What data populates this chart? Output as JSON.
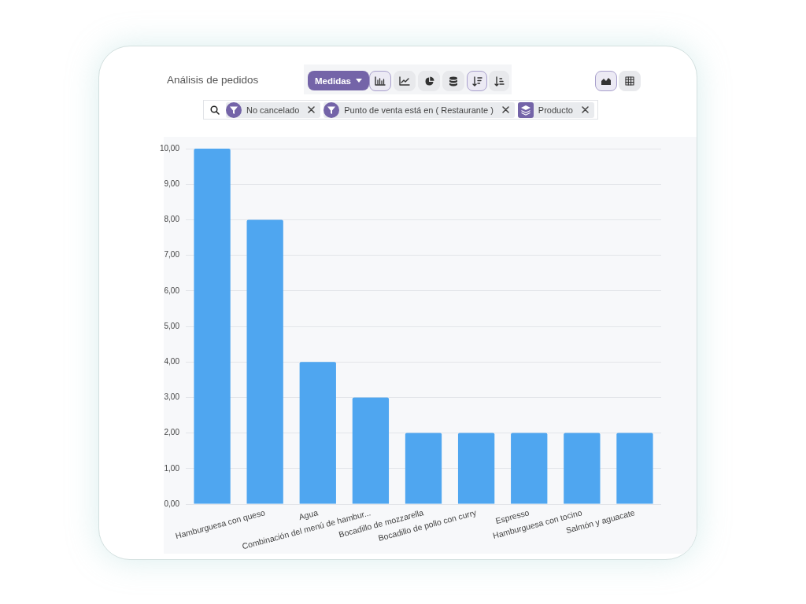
{
  "chart_data": {
    "type": "bar",
    "title": "Análisis de pedidos",
    "categories": [
      null,
      "Hamburguesa con queso",
      "Agua",
      "Combinación del menú de hambur...",
      "Bocadillo de mozzarella",
      "Bocadillo de pollo con curry",
      "Espresso",
      "Hamburguesa con tocino",
      "Salmón y aguacate"
    ],
    "values": [
      10,
      8,
      4,
      3,
      2,
      2,
      2,
      2,
      2
    ],
    "color": "#4fa6f0",
    "ylim": [
      0,
      10
    ],
    "yticks": [
      {
        "value": 0,
        "label": "0,00"
      },
      {
        "value": 1,
        "label": "1,00"
      },
      {
        "value": 2,
        "label": "2,00"
      },
      {
        "value": 3,
        "label": "3,00"
      },
      {
        "value": 4,
        "label": "4,00"
      },
      {
        "value": 5,
        "label": "5,00"
      },
      {
        "value": 6,
        "label": "6,00"
      },
      {
        "value": 7,
        "label": "7,00"
      },
      {
        "value": 8,
        "label": "8,00"
      },
      {
        "value": 9,
        "label": "9,00"
      },
      {
        "value": 10,
        "label": "10,00"
      }
    ],
    "grid": "y",
    "annotations": [
      "Medidas",
      "No cancelado",
      "Punto de venta está en ( Restaurante )",
      "Producto"
    ]
  }
}
